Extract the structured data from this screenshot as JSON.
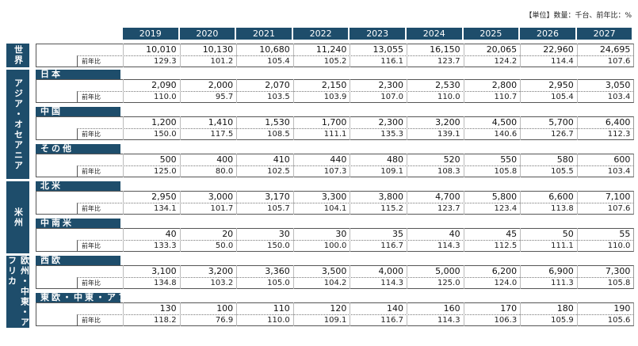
{
  "unit_note": "【単位】数量：千台、前年比：%",
  "yoy_label": "前年比",
  "years": [
    "2019",
    "2020",
    "2021",
    "2022",
    "2023",
    "2024",
    "2025",
    "2026",
    "2027"
  ],
  "world": {
    "label": "世界",
    "values": [
      "10,010",
      "10,130",
      "10,680",
      "11,240",
      "13,055",
      "16,150",
      "20,065",
      "22,960",
      "24,695"
    ],
    "yoy": [
      "129.3",
      "101.2",
      "105.4",
      "105.2",
      "116.1",
      "123.7",
      "124.2",
      "114.4",
      "107.6"
    ]
  },
  "groups": [
    {
      "label": "アジア・オセアニア",
      "regions": [
        {
          "label": "日本",
          "values": [
            "2,090",
            "2,000",
            "2,070",
            "2,150",
            "2,300",
            "2,530",
            "2,800",
            "2,950",
            "3,050"
          ],
          "yoy": [
            "110.0",
            "95.7",
            "103.5",
            "103.9",
            "107.0",
            "110.0",
            "110.7",
            "105.4",
            "103.4"
          ]
        },
        {
          "label": "中国",
          "values": [
            "1,200",
            "1,410",
            "1,530",
            "1,700",
            "2,300",
            "3,200",
            "4,500",
            "5,700",
            "6,400"
          ],
          "yoy": [
            "150.0",
            "117.5",
            "108.5",
            "111.1",
            "135.3",
            "139.1",
            "140.6",
            "126.7",
            "112.3"
          ]
        },
        {
          "label": "その他",
          "values": [
            "500",
            "400",
            "410",
            "440",
            "480",
            "520",
            "550",
            "580",
            "600"
          ],
          "yoy": [
            "125.0",
            "80.0",
            "102.5",
            "107.3",
            "109.1",
            "108.3",
            "105.8",
            "105.5",
            "103.4"
          ]
        }
      ]
    },
    {
      "label": "米州",
      "regions": [
        {
          "label": "北米",
          "values": [
            "2,950",
            "3,000",
            "3,170",
            "3,300",
            "3,800",
            "4,700",
            "5,800",
            "6,600",
            "7,100"
          ],
          "yoy": [
            "134.1",
            "101.7",
            "105.7",
            "104.1",
            "115.2",
            "123.7",
            "123.4",
            "113.8",
            "107.6"
          ]
        },
        {
          "label": "中南米",
          "values": [
            "40",
            "20",
            "30",
            "30",
            "35",
            "40",
            "45",
            "50",
            "55"
          ],
          "yoy": [
            "133.3",
            "50.0",
            "150.0",
            "100.0",
            "116.7",
            "114.3",
            "112.5",
            "111.1",
            "110.0"
          ]
        }
      ]
    },
    {
      "label": "欧州・中東・アフリカ",
      "regions": [
        {
          "label": "西欧",
          "values": [
            "3,100",
            "3,200",
            "3,360",
            "3,500",
            "4,000",
            "5,000",
            "6,200",
            "6,900",
            "7,300"
          ],
          "yoy": [
            "134.8",
            "103.2",
            "105.0",
            "104.2",
            "114.3",
            "125.0",
            "124.0",
            "111.3",
            "105.8"
          ]
        },
        {
          "label": "東欧・中東・アフリカ",
          "values": [
            "130",
            "100",
            "110",
            "120",
            "140",
            "160",
            "170",
            "180",
            "190"
          ],
          "yoy": [
            "118.2",
            "76.9",
            "110.0",
            "109.1",
            "116.7",
            "114.3",
            "106.3",
            "105.9",
            "105.6"
          ]
        }
      ]
    }
  ]
}
